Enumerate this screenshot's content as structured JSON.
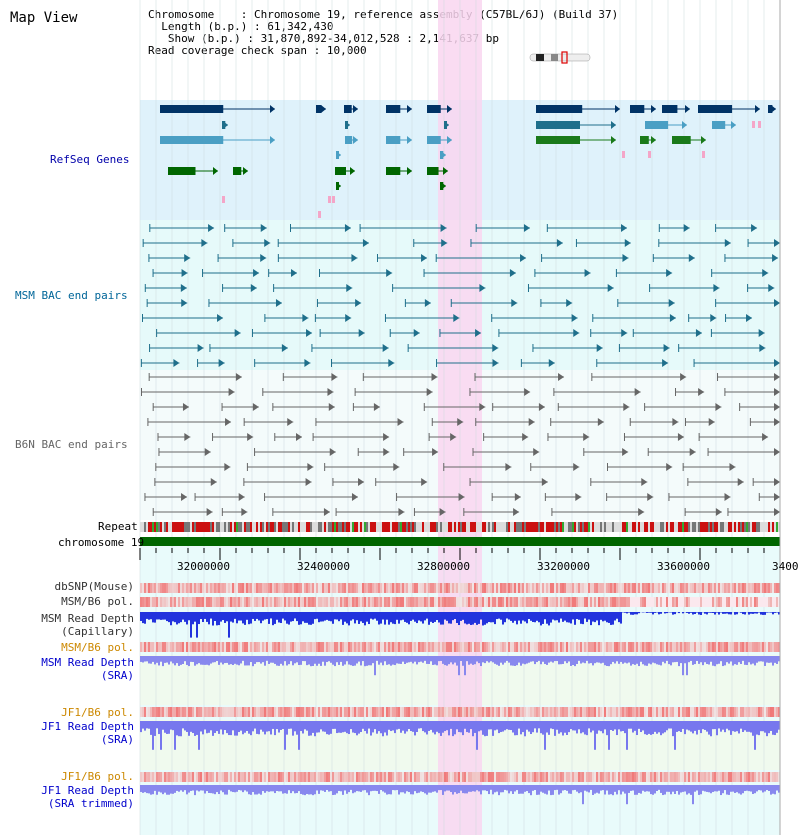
{
  "page": {
    "title": "Map View"
  },
  "header": {
    "chromosome_label": "Chromosome",
    "chromosome_value": "Chromosome 19, reference assembly (C57BL/6J) (Build 37)",
    "length_label": "Length (b.p.)",
    "length_value": "61,342,430",
    "show_label": "Show (b.p.)",
    "show_value": "31,870,892-34,012,528 : 2,141,637 bp",
    "coverage_label": "Read coverage check span",
    "coverage_value": "10,000"
  },
  "tracks": {
    "refseq": "RefSeq Genes",
    "msm_bac": "MSM BAC end pairs",
    "b6n_bac": "B6N BAC end pairs",
    "repeat": "Repeat",
    "chromosome": "chromosome 19",
    "dbsnp": "dbSNP(Mouse)",
    "msm_b6_pol_1": "MSM/B6 pol.",
    "msm_read_depth_cap_1": "MSM Read Depth",
    "msm_read_depth_cap_2": "(Capillary)",
    "msm_b6_pol_2": "MSM/B6 pol.",
    "msm_read_depth_sra_1": "MSM Read Depth",
    "msm_read_depth_sra_2": "(SRA)",
    "jf1_b6_pol_1": "JF1/B6 pol.",
    "jf1_read_depth_sra_1": "JF1 Read Depth",
    "jf1_read_depth_sra_2": "(SRA)",
    "jf1_b6_pol_2": "JF1/B6 pol.",
    "jf1_read_depth_trim_1": "JF1 Read Depth",
    "jf1_read_depth_trim_2": "(SRA trimmed)"
  },
  "axis": {
    "ticks": [
      "32000000",
      "32400000",
      "32800000",
      "33200000",
      "33600000",
      "3400"
    ]
  },
  "colors": {
    "refseq_bg": "#dff2fb",
    "bac_bg": "#e6fafa",
    "highlight": "#f9d6f0",
    "refseq_label": "#0000aa",
    "msm_label": "#006699",
    "b6n_label": "#666666",
    "pol_label_orange": "#cc8800",
    "depth_label_blue": "#0000cc",
    "chromosome_bar": "#006600"
  }
}
